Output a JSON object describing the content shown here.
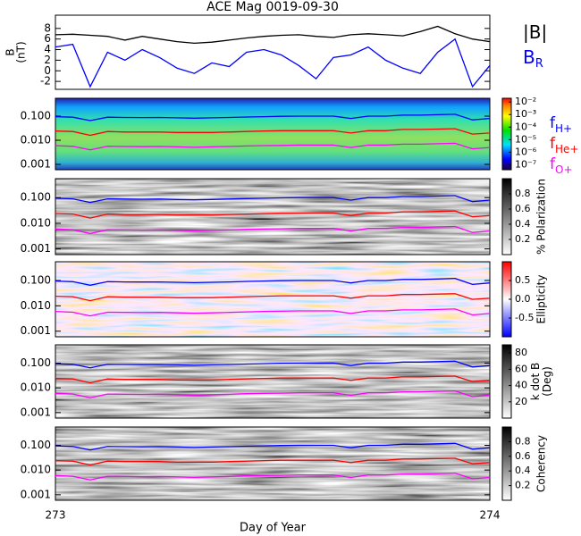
{
  "title": "ACE Mag 0019-09-30",
  "xlabel": "Day of Year",
  "x": [
    273.0,
    273.04,
    273.08,
    273.12,
    273.16,
    273.2,
    273.24,
    273.28,
    273.32,
    273.36,
    273.4,
    273.44,
    273.48,
    273.52,
    273.56,
    273.6,
    273.64,
    273.68,
    273.72,
    273.76,
    273.8,
    273.84,
    273.88,
    273.92,
    273.96,
    274.0
  ],
  "xlim": [
    273,
    274
  ],
  "xticks": [
    273,
    274
  ],
  "lines": [
    {
      "name": "f",
      "subscript": "H+",
      "color": "#0000ff",
      "values": [
        0.095,
        0.09,
        0.065,
        0.09,
        0.088,
        0.087,
        0.088,
        0.085,
        0.082,
        0.085,
        0.088,
        0.092,
        0.095,
        0.098,
        0.1,
        0.1,
        0.1,
        0.08,
        0.1,
        0.1,
        0.11,
        0.11,
        0.115,
        0.12,
        0.07,
        0.08
      ]
    },
    {
      "name": "f",
      "subscript": "He+",
      "color": "#ff0000",
      "values": [
        0.024,
        0.023,
        0.016,
        0.023,
        0.022,
        0.022,
        0.022,
        0.021,
        0.021,
        0.021,
        0.022,
        0.023,
        0.024,
        0.025,
        0.025,
        0.025,
        0.025,
        0.02,
        0.025,
        0.025,
        0.028,
        0.028,
        0.029,
        0.03,
        0.018,
        0.02
      ]
    },
    {
      "name": "f",
      "subscript": "O+",
      "color": "#ff00ff",
      "values": [
        0.006,
        0.0056,
        0.004,
        0.0056,
        0.0055,
        0.0054,
        0.0055,
        0.0053,
        0.0051,
        0.0053,
        0.0055,
        0.0058,
        0.006,
        0.0061,
        0.0063,
        0.0063,
        0.0063,
        0.005,
        0.0063,
        0.0063,
        0.0069,
        0.0069,
        0.0072,
        0.0075,
        0.0044,
        0.005
      ]
    }
  ],
  "chart_data": [
    {
      "type": "line",
      "ylabel": [
        "B",
        "(nT)"
      ],
      "ylim": [
        -3.5,
        10.5
      ],
      "yticks": [
        -2,
        0,
        2,
        4,
        6,
        8
      ],
      "series": [
        {
          "name": "|B|",
          "color": "#000000",
          "values": [
            6.8,
            6.9,
            6.7,
            6.5,
            5.8,
            6.5,
            6.0,
            5.5,
            5.2,
            5.4,
            5.8,
            6.2,
            6.5,
            6.7,
            6.8,
            6.5,
            6.3,
            6.8,
            7.0,
            6.8,
            6.6,
            7.4,
            8.4,
            7.0,
            6.0,
            5.5
          ]
        },
        {
          "name": "B",
          "subscript": "R",
          "color": "#0000ff",
          "values": [
            4.5,
            5.0,
            -3,
            3.5,
            2.0,
            4.0,
            2.5,
            0.5,
            -0.5,
            1.5,
            0.8,
            3.5,
            4.0,
            3.0,
            1.0,
            -1.5,
            2.5,
            3.0,
            4.5,
            2.0,
            0.5,
            -0.5,
            3.5,
            6.0,
            -3.0,
            1.0
          ]
        }
      ]
    },
    {
      "type": "spectrogram",
      "colormap": "rainbow",
      "legend": true,
      "ylim": [
        0.0006,
        0.55
      ],
      "yticks": [
        {
          "value": 0.001,
          "label": "0.001"
        },
        {
          "value": 0.01,
          "label": "0.010"
        },
        {
          "value": 0.1,
          "label": "0.100"
        }
      ],
      "colorbar": {
        "lim": [
          -7.4,
          -1.7
        ],
        "ticks": [
          {
            "value": -2,
            "label": "10⁻²"
          },
          {
            "value": -3,
            "label": "10⁻³"
          },
          {
            "value": -4,
            "label": "10⁻⁴"
          },
          {
            "value": -5,
            "label": "10⁻⁵"
          },
          {
            "value": -6,
            "label": "10⁻⁶"
          },
          {
            "value": -7,
            "label": "10⁻⁷"
          }
        ]
      }
    },
    {
      "type": "spectrogram",
      "colormap": "gray",
      "ylim": [
        0.0006,
        0.55
      ],
      "yticks": [
        {
          "value": 0.001,
          "label": "0.001"
        },
        {
          "value": 0.01,
          "label": "0.010"
        },
        {
          "value": 0.1,
          "label": "0.100"
        }
      ],
      "colorbar": {
        "label": [
          "% Polarization"
        ],
        "lim": [
          0,
          1
        ],
        "ticks": [
          0.2,
          0.4,
          0.6,
          0.8
        ]
      }
    },
    {
      "type": "spectrogram",
      "colormap": "bwr",
      "ylim": [
        0.0006,
        0.55
      ],
      "yticks": [
        {
          "value": 0.001,
          "label": "0.001"
        },
        {
          "value": 0.01,
          "label": "0.010"
        },
        {
          "value": 0.1,
          "label": "0.100"
        }
      ],
      "colorbar": {
        "label": [
          "Ellipticity"
        ],
        "lim": [
          -1,
          1
        ],
        "ticks": [
          -0.5,
          {
            "value": 0,
            "label": "0.0"
          },
          0.5
        ]
      }
    },
    {
      "type": "spectrogram",
      "colormap": "gray",
      "ylim": [
        0.0006,
        0.55
      ],
      "yticks": [
        {
          "value": 0.001,
          "label": "0.001"
        },
        {
          "value": 0.01,
          "label": "0.010"
        },
        {
          "value": 0.1,
          "label": "0.100"
        }
      ],
      "colorbar": {
        "label": [
          "k dot B",
          "(Deg)"
        ],
        "lim": [
          0,
          90
        ],
        "ticks": [
          20,
          40,
          60,
          80
        ]
      }
    },
    {
      "type": "spectrogram",
      "colormap": "gray",
      "ylim": [
        0.0006,
        0.55
      ],
      "yticks": [
        {
          "value": 0.001,
          "label": "0.001"
        },
        {
          "value": 0.01,
          "label": "0.010"
        },
        {
          "value": 0.1,
          "label": "0.100"
        }
      ],
      "colorbar": {
        "label": [
          "Coherency"
        ],
        "lim": [
          0,
          1
        ],
        "ticks": [
          0.2,
          0.4,
          0.6,
          0.8
        ]
      }
    }
  ]
}
